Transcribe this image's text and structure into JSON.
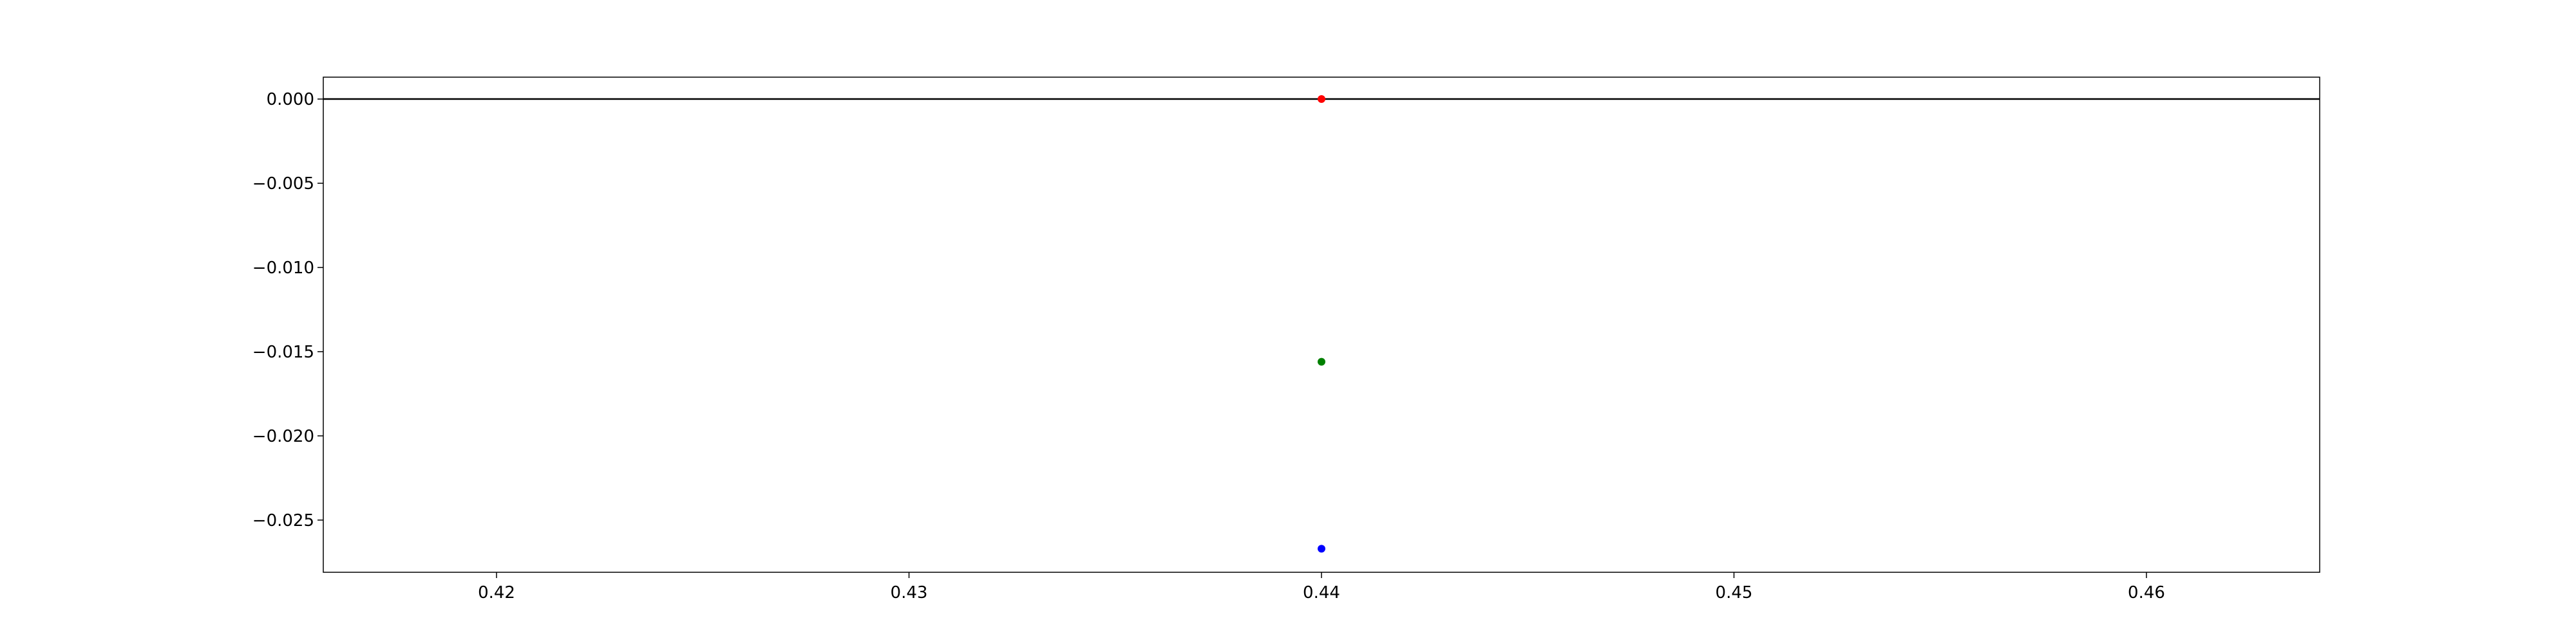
{
  "chart_data": {
    "type": "scatter",
    "title": "",
    "xlabel": "",
    "ylabel": "",
    "xlim": [
      0.4158,
      0.4642
    ],
    "ylim": [
      -0.0281,
      0.0013
    ],
    "x_ticks": [
      {
        "value": 0.42,
        "label": "0.42"
      },
      {
        "value": 0.43,
        "label": "0.43"
      },
      {
        "value": 0.44,
        "label": "0.44"
      },
      {
        "value": 0.45,
        "label": "0.45"
      },
      {
        "value": 0.46,
        "label": "0.46"
      }
    ],
    "y_ticks": [
      {
        "value": 0.0,
        "label": "0.000"
      },
      {
        "value": -0.005,
        "label": "−0.005"
      },
      {
        "value": -0.01,
        "label": "−0.010"
      },
      {
        "value": -0.015,
        "label": "−0.015"
      },
      {
        "value": -0.02,
        "label": "−0.020"
      },
      {
        "value": -0.025,
        "label": "−0.025"
      }
    ],
    "grid": false,
    "legend": "none",
    "reference_line": {
      "y": 0.0,
      "color": "#000000"
    },
    "series": [
      {
        "color": "#ff0000",
        "points": [
          {
            "x": 0.44,
            "y": 0.0
          }
        ]
      },
      {
        "color": "#008000",
        "points": [
          {
            "x": 0.44,
            "y": -0.0156
          }
        ]
      },
      {
        "color": "#0000ff",
        "points": [
          {
            "x": 0.44,
            "y": -0.0267
          }
        ]
      }
    ]
  }
}
